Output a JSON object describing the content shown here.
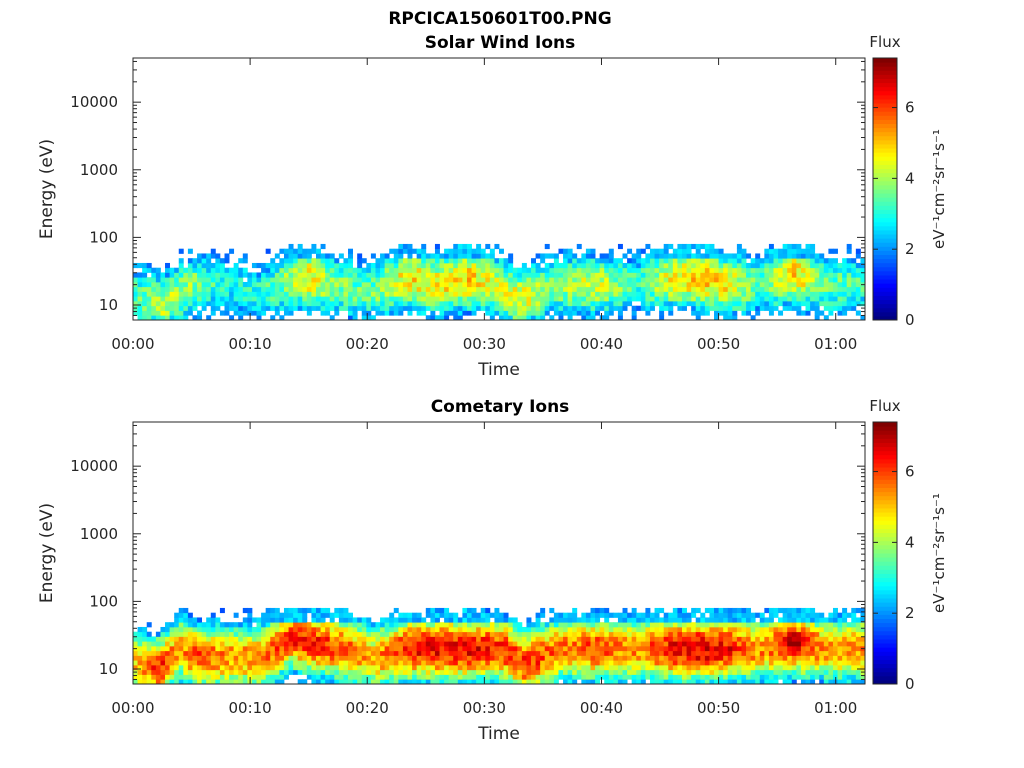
{
  "figure": {
    "title": "RPCICA150601T00.PNG"
  },
  "chart_data": [
    {
      "type": "heatmap",
      "title": "Solar Wind Ions",
      "xlabel": "Time",
      "ylabel": "Energy (eV)",
      "yscale": "log",
      "ylim": [
        6,
        45000
      ],
      "xlim_minutes": [
        0,
        62.5
      ],
      "x_tick_labels": [
        "00:00",
        "00:10",
        "00:20",
        "00:30",
        "00:40",
        "00:50",
        "01:00"
      ],
      "y_tick_labels": [
        "10",
        "100",
        "1000",
        "10000"
      ],
      "colorbar": {
        "label": "Flux",
        "units_label": "eV⁻¹cm⁻²sr⁻¹s⁻¹",
        "ticks": [
          "0",
          "2",
          "4",
          "6"
        ],
        "range": [
          0,
          7.4
        ],
        "colormap": "jet"
      },
      "data_energy_range_eV": [
        6,
        80
      ],
      "activity_profile": [
        {
          "t_min": 0.0,
          "peak_flux": 3.2,
          "peak_energy_eV": 15
        },
        {
          "t_min": 2.5,
          "peak_flux": 4.2,
          "peak_energy_eV": 10
        },
        {
          "t_min": 5.0,
          "peak_flux": 3.8,
          "peak_energy_eV": 20
        },
        {
          "t_min": 8.0,
          "peak_flux": 2.8,
          "peak_energy_eV": 20
        },
        {
          "t_min": 11.0,
          "peak_flux": 3.0,
          "peak_energy_eV": 15
        },
        {
          "t_min": 13.5,
          "peak_flux": 4.0,
          "peak_energy_eV": 25
        },
        {
          "t_min": 15.0,
          "peak_flux": 4.8,
          "peak_energy_eV": 25
        },
        {
          "t_min": 17.0,
          "peak_flux": 3.8,
          "peak_energy_eV": 20
        },
        {
          "t_min": 20.0,
          "peak_flux": 3.4,
          "peak_energy_eV": 15
        },
        {
          "t_min": 23.5,
          "peak_flux": 4.8,
          "peak_energy_eV": 25
        },
        {
          "t_min": 26.0,
          "peak_flux": 4.6,
          "peak_energy_eV": 20
        },
        {
          "t_min": 28.5,
          "peak_flux": 5.0,
          "peak_energy_eV": 25
        },
        {
          "t_min": 31.0,
          "peak_flux": 4.2,
          "peak_energy_eV": 20
        },
        {
          "t_min": 33.0,
          "peak_flux": 4.6,
          "peak_energy_eV": 12
        },
        {
          "t_min": 36.0,
          "peak_flux": 3.8,
          "peak_energy_eV": 20
        },
        {
          "t_min": 39.5,
          "peak_flux": 4.4,
          "peak_energy_eV": 20
        },
        {
          "t_min": 43.0,
          "peak_flux": 3.2,
          "peak_energy_eV": 20
        },
        {
          "t_min": 46.0,
          "peak_flux": 4.6,
          "peak_energy_eV": 25
        },
        {
          "t_min": 48.5,
          "peak_flux": 5.0,
          "peak_energy_eV": 25
        },
        {
          "t_min": 51.0,
          "peak_flux": 4.6,
          "peak_energy_eV": 20
        },
        {
          "t_min": 53.5,
          "peak_flux": 3.4,
          "peak_energy_eV": 20
        },
        {
          "t_min": 56.5,
          "peak_flux": 5.0,
          "peak_energy_eV": 30
        },
        {
          "t_min": 59.0,
          "peak_flux": 3.6,
          "peak_energy_eV": 20
        },
        {
          "t_min": 62.5,
          "peak_flux": 3.2,
          "peak_energy_eV": 20
        }
      ]
    },
    {
      "type": "heatmap",
      "title": "Cometary Ions",
      "xlabel": "Time",
      "ylabel": "Energy (eV)",
      "yscale": "log",
      "ylim": [
        6,
        45000
      ],
      "xlim_minutes": [
        0,
        62.5
      ],
      "x_tick_labels": [
        "00:00",
        "00:10",
        "00:20",
        "00:30",
        "00:40",
        "00:50",
        "01:00"
      ],
      "y_tick_labels": [
        "10",
        "100",
        "1000",
        "10000"
      ],
      "colorbar": {
        "label": "Flux",
        "units_label": "eV⁻¹cm⁻²sr⁻¹s⁻¹",
        "ticks": [
          "0",
          "2",
          "4",
          "6"
        ],
        "range": [
          0,
          7.4
        ],
        "colormap": "jet"
      },
      "data_energy_range_eV": [
        6,
        80
      ],
      "activity_profile": [
        {
          "t_min": 0.0,
          "peak_flux": 4.8,
          "peak_energy_eV": 12
        },
        {
          "t_min": 2.2,
          "peak_flux": 6.2,
          "peak_energy_eV": 10
        },
        {
          "t_min": 4.0,
          "peak_flux": 5.2,
          "peak_energy_eV": 20
        },
        {
          "t_min": 5.5,
          "peak_flux": 6.0,
          "peak_energy_eV": 15
        },
        {
          "t_min": 8.0,
          "peak_flux": 5.4,
          "peak_energy_eV": 15
        },
        {
          "t_min": 11.0,
          "peak_flux": 5.6,
          "peak_energy_eV": 15
        },
        {
          "t_min": 13.5,
          "peak_flux": 6.2,
          "peak_energy_eV": 30
        },
        {
          "t_min": 15.0,
          "peak_flux": 6.4,
          "peak_energy_eV": 25
        },
        {
          "t_min": 18.0,
          "peak_flux": 5.8,
          "peak_energy_eV": 20
        },
        {
          "t_min": 20.5,
          "peak_flux": 5.2,
          "peak_energy_eV": 15
        },
        {
          "t_min": 23.5,
          "peak_flux": 6.4,
          "peak_energy_eV": 20
        },
        {
          "t_min": 26.5,
          "peak_flux": 6.6,
          "peak_energy_eV": 20
        },
        {
          "t_min": 29.0,
          "peak_flux": 6.6,
          "peak_energy_eV": 20
        },
        {
          "t_min": 31.5,
          "peak_flux": 6.2,
          "peak_energy_eV": 20
        },
        {
          "t_min": 33.5,
          "peak_flux": 6.2,
          "peak_energy_eV": 12
        },
        {
          "t_min": 36.5,
          "peak_flux": 5.6,
          "peak_energy_eV": 20
        },
        {
          "t_min": 39.5,
          "peak_flux": 6.0,
          "peak_energy_eV": 20
        },
        {
          "t_min": 43.0,
          "peak_flux": 5.4,
          "peak_energy_eV": 20
        },
        {
          "t_min": 46.0,
          "peak_flux": 6.4,
          "peak_energy_eV": 20
        },
        {
          "t_min": 48.5,
          "peak_flux": 6.8,
          "peak_energy_eV": 20
        },
        {
          "t_min": 51.0,
          "peak_flux": 6.4,
          "peak_energy_eV": 20
        },
        {
          "t_min": 53.5,
          "peak_flux": 5.4,
          "peak_energy_eV": 20
        },
        {
          "t_min": 56.5,
          "peak_flux": 6.8,
          "peak_energy_eV": 25
        },
        {
          "t_min": 59.0,
          "peak_flux": 5.4,
          "peak_energy_eV": 20
        },
        {
          "t_min": 62.5,
          "peak_flux": 5.6,
          "peak_energy_eV": 20
        }
      ]
    }
  ]
}
